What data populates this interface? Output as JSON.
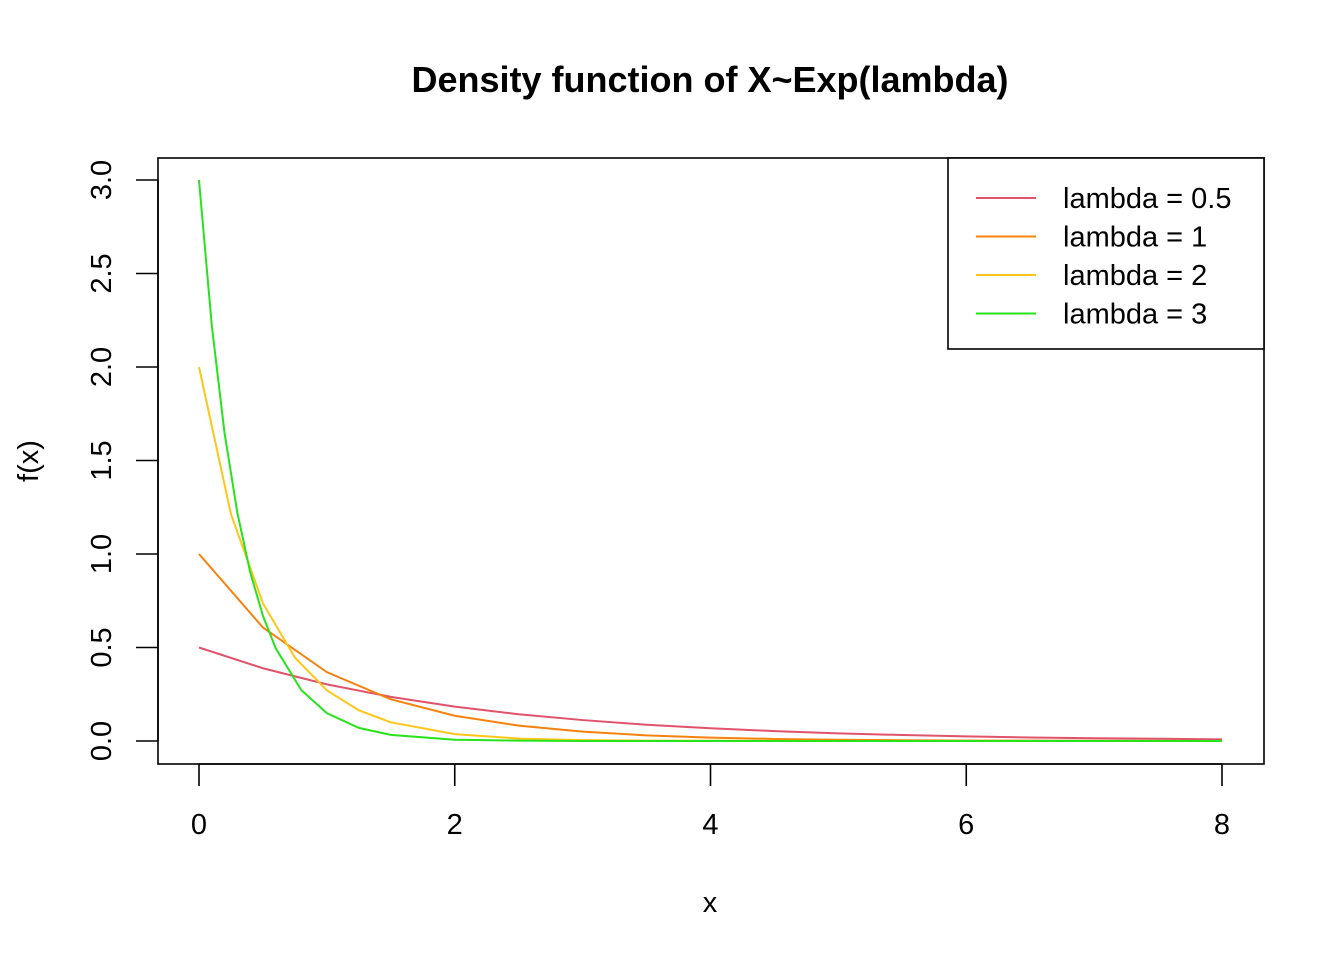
{
  "chart_data": {
    "type": "line",
    "title": "Density function of X~Exp(lambda)",
    "xlabel": "x",
    "ylabel": "f(x)",
    "xlim": [
      0,
      8
    ],
    "ylim": [
      0,
      3
    ],
    "x_ticks": [
      "0",
      "2",
      "4",
      "6",
      "8"
    ],
    "y_ticks": [
      "0.0",
      "0.5",
      "1.0",
      "1.5",
      "2.0",
      "2.5",
      "3.0"
    ],
    "grid": false,
    "legend_position": "top-right",
    "series": [
      {
        "name": "lambda = 0.5",
        "color": "#DF536B",
        "x": [
          0,
          0.5,
          1,
          1.5,
          2,
          2.5,
          3,
          3.5,
          4,
          4.5,
          5,
          5.5,
          6,
          6.5,
          7,
          7.5,
          8
        ],
        "values": [
          0.5,
          0.389,
          0.303,
          0.236,
          0.184,
          0.143,
          0.112,
          0.087,
          0.068,
          0.053,
          0.041,
          0.032,
          0.025,
          0.019,
          0.015,
          0.012,
          0.009
        ]
      },
      {
        "name": "lambda = 1",
        "color": "#F5820D",
        "x": [
          0,
          0.5,
          1,
          1.5,
          2,
          2.5,
          3,
          3.5,
          4,
          4.5,
          5,
          5.5,
          6,
          6.5,
          7,
          7.5,
          8
        ],
        "values": [
          1.0,
          0.607,
          0.368,
          0.223,
          0.135,
          0.082,
          0.05,
          0.03,
          0.018,
          0.011,
          0.007,
          0.004,
          0.002,
          0.002,
          0.001,
          0.001,
          0.0
        ]
      },
      {
        "name": "lambda = 2",
        "color": "#FFC619",
        "x": [
          0,
          0.25,
          0.5,
          0.75,
          1,
          1.25,
          1.5,
          2,
          2.5,
          3,
          3.5,
          4,
          5,
          6,
          7,
          8
        ],
        "values": [
          2.0,
          1.213,
          0.736,
          0.446,
          0.271,
          0.164,
          0.1,
          0.037,
          0.013,
          0.005,
          0.002,
          0.001,
          0.0,
          0.0,
          0.0,
          0.0
        ]
      },
      {
        "name": "lambda = 3",
        "color": "#28E21C",
        "x": [
          0,
          0.1,
          0.2,
          0.3,
          0.4,
          0.5,
          0.6,
          0.8,
          1,
          1.25,
          1.5,
          2,
          2.5,
          3,
          4,
          5,
          6,
          7,
          8
        ],
        "values": [
          3.0,
          2.222,
          1.646,
          1.22,
          0.904,
          0.669,
          0.496,
          0.272,
          0.149,
          0.07,
          0.033,
          0.007,
          0.002,
          0.0,
          0.0,
          0.0,
          0.0,
          0.0,
          0.0
        ]
      }
    ]
  }
}
